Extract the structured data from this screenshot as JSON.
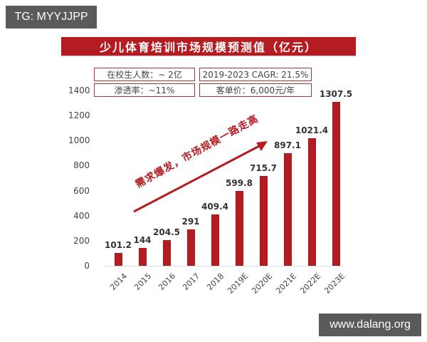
{
  "watermarks": {
    "top_left": "TG: MYYJJPP",
    "bottom_right": "www.dalang.org"
  },
  "chart_data": {
    "type": "bar",
    "title": "少儿体育培训市场规模预测值（亿元）",
    "xlabel": "",
    "ylabel": "",
    "ylim": [
      0,
      1400
    ],
    "yticks": [
      0,
      200,
      400,
      600,
      800,
      1000,
      1200,
      1400
    ],
    "grid": false,
    "categories": [
      "2014",
      "2015",
      "2016",
      "2017",
      "2018",
      "2019E",
      "2020E",
      "2021E",
      "2022E",
      "2023E"
    ],
    "values": [
      101.2,
      144,
      204.5,
      291,
      409.4,
      599.8,
      715.7,
      897.1,
      1021.4,
      1307.5
    ],
    "value_labels": [
      "101.2",
      "144",
      "204.5",
      "291",
      "409.4",
      "599.8",
      "715.7",
      "897.1",
      "1021.4",
      "1307.5"
    ],
    "bar_color": "#b51c22",
    "annotations": [
      "在校生人数：~ 2亿",
      "2019-2023 CAGR: 21.5%",
      "渗透率：~11%",
      "客单价：6,000元/年",
      "需求爆发，市场规模一路走高"
    ]
  },
  "info": {
    "students": "在校生人数：~ 2亿",
    "cagr": "2019-2023 CAGR: 21.5%",
    "penetration": "渗透率：~11%",
    "price": "客单价：6,000元/年"
  },
  "arrow_text": "需求爆发，市场规模一路走高",
  "colors": {
    "accent": "#b51c22",
    "watermark_bg": "#5a5a5a"
  }
}
